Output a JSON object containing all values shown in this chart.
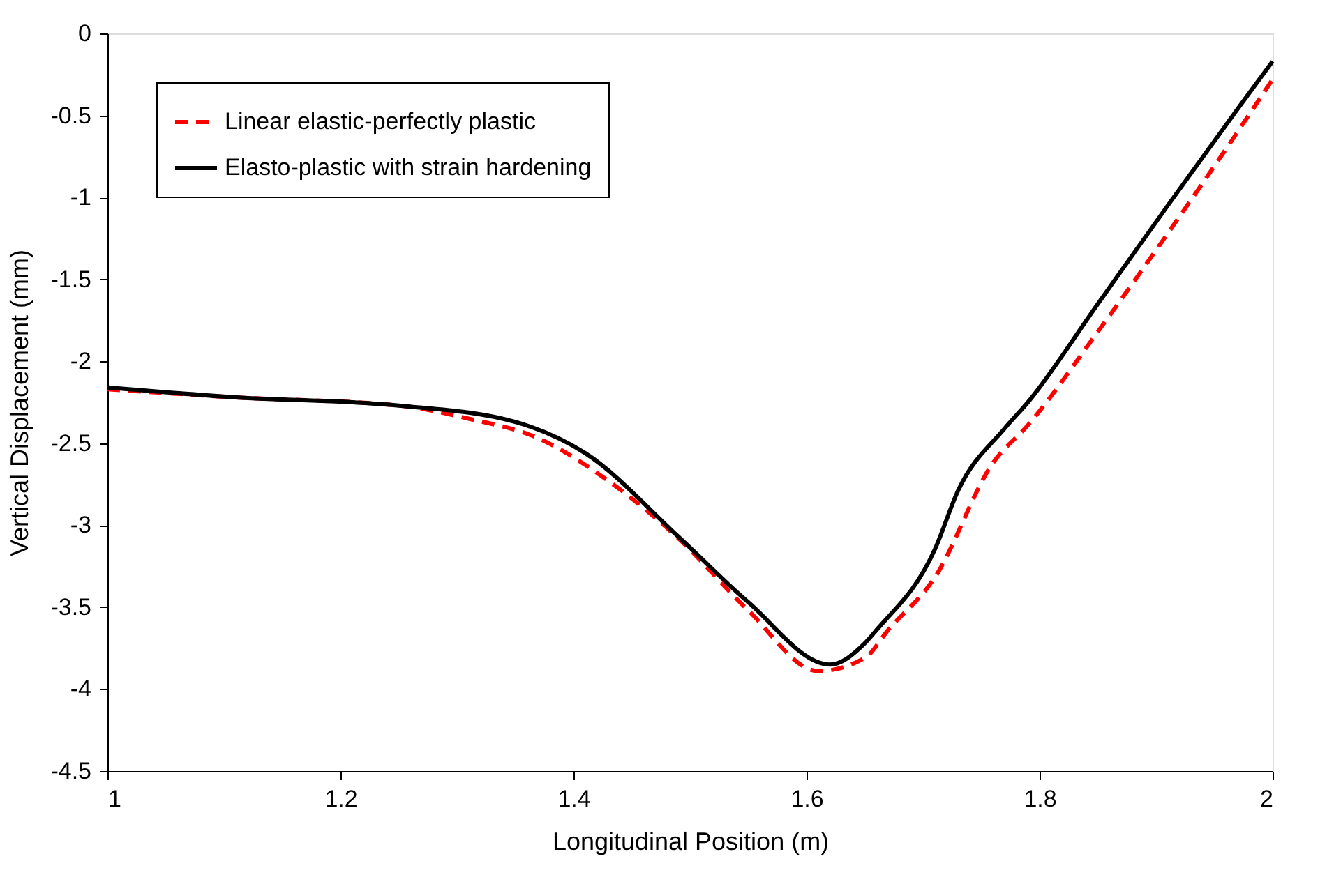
{
  "chart_data": {
    "type": "line",
    "xlabel": "Longitudinal Position (m)",
    "ylabel": "Vertical Displacement (mm)",
    "xlim": [
      1,
      2
    ],
    "xticks": [
      1,
      {
        "value": 1.2,
        "label": "1.2"
      },
      {
        "value": 1.4,
        "label": "1.4"
      },
      {
        "value": 1.6,
        "label": "1.6"
      },
      {
        "value": 1.8,
        "label": "1.8"
      },
      2
    ],
    "ylim": [
      -4.5,
      0
    ],
    "yticks": [
      -4.5,
      -4,
      -3.5,
      -3,
      -2.5,
      -2,
      -1.5,
      -1,
      -0.5,
      0
    ],
    "grid": false,
    "legend": "top left",
    "marker": "none",
    "series": [
      {
        "name": "Linear elastic-perfectly plastic",
        "color": "#ff0000",
        "line_style": "dashed",
        "x": [
          1.0,
          1.11,
          1.25,
          1.31,
          1.37,
          1.43,
          1.49,
          1.55,
          1.61,
          1.65,
          1.67,
          1.71,
          1.76,
          1.79,
          1.85,
          1.91,
          1.97,
          2.0
        ],
        "values": [
          -2.17,
          -2.22,
          -2.27,
          -2.35,
          -2.47,
          -2.73,
          -3.08,
          -3.52,
          -3.89,
          -3.81,
          -3.64,
          -3.32,
          -2.62,
          -2.39,
          -1.82,
          -1.22,
          -0.6,
          -0.28
        ]
      },
      {
        "name": "Elasto-plastic with strain hardening",
        "color": "#000000",
        "line_style": "solid",
        "x": [
          1.0,
          1.11,
          1.25,
          1.35,
          1.41,
          1.49,
          1.55,
          1.62,
          1.65,
          1.66,
          1.71,
          1.73,
          1.77,
          1.79,
          1.85,
          1.91,
          1.97,
          2.0
        ],
        "values": [
          -2.16,
          -2.22,
          -2.27,
          -2.37,
          -2.56,
          -3.07,
          -3.47,
          -3.85,
          -3.72,
          -3.64,
          -3.15,
          -2.79,
          -2.41,
          -2.25,
          -1.65,
          -1.05,
          -0.46,
          -0.17
        ]
      }
    ]
  }
}
